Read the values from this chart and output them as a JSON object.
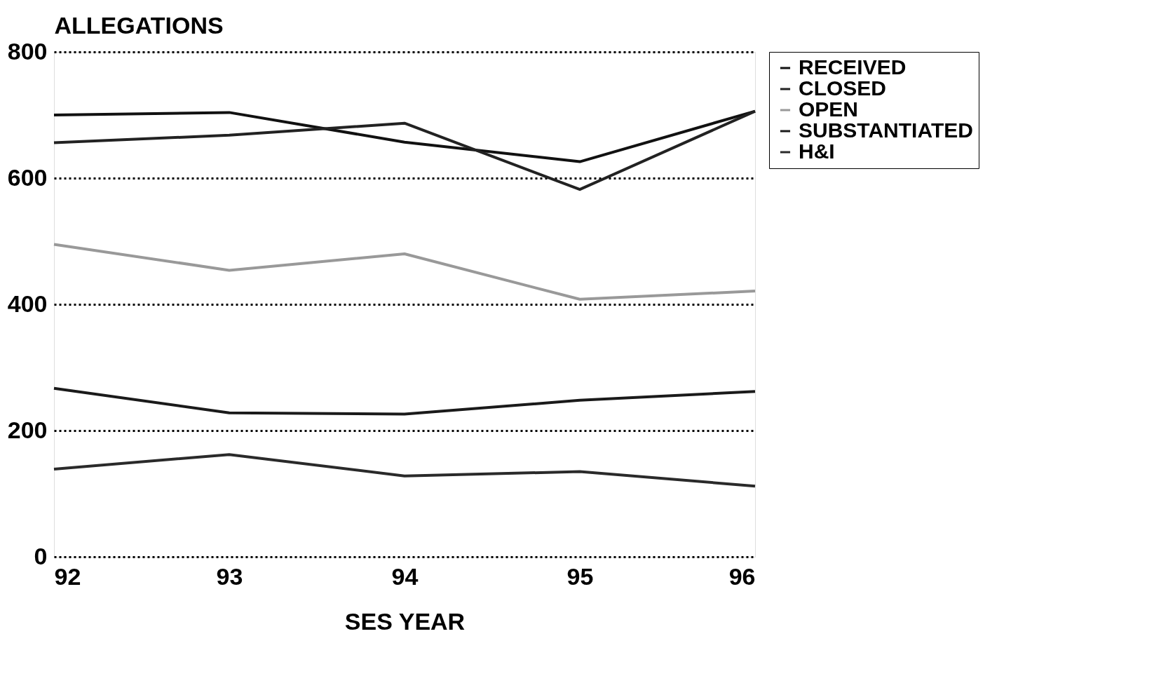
{
  "chart_data": {
    "type": "line",
    "xlabel": "SES YEAR",
    "ylabel": "ALLEGATIONS",
    "x": [
      92,
      93,
      94,
      95,
      96
    ],
    "xlim": [
      92,
      96
    ],
    "xticks": [
      92,
      93,
      94,
      95,
      96
    ],
    "ylim": [
      0,
      800
    ],
    "yticks": [
      0,
      200,
      400,
      600,
      800
    ],
    "grid": "y",
    "legend": "right",
    "line_style": "solid",
    "marker": "none",
    "series": [
      {
        "name": "RECEIVED",
        "color": "#111111",
        "values": [
          700,
          704,
          657,
          626,
          706
        ]
      },
      {
        "name": "CLOSED",
        "color": "#222222",
        "values": [
          656,
          668,
          687,
          582,
          706
        ]
      },
      {
        "name": "OPEN",
        "color": "#999999",
        "values": [
          495,
          454,
          480,
          408,
          421
        ]
      },
      {
        "name": "SUBSTANTIATED",
        "color": "#1a1a1a",
        "values": [
          267,
          228,
          226,
          248,
          262
        ]
      },
      {
        "name": "H&I",
        "color": "#2a2a2a",
        "values": [
          139,
          162,
          128,
          135,
          112
        ]
      }
    ]
  }
}
